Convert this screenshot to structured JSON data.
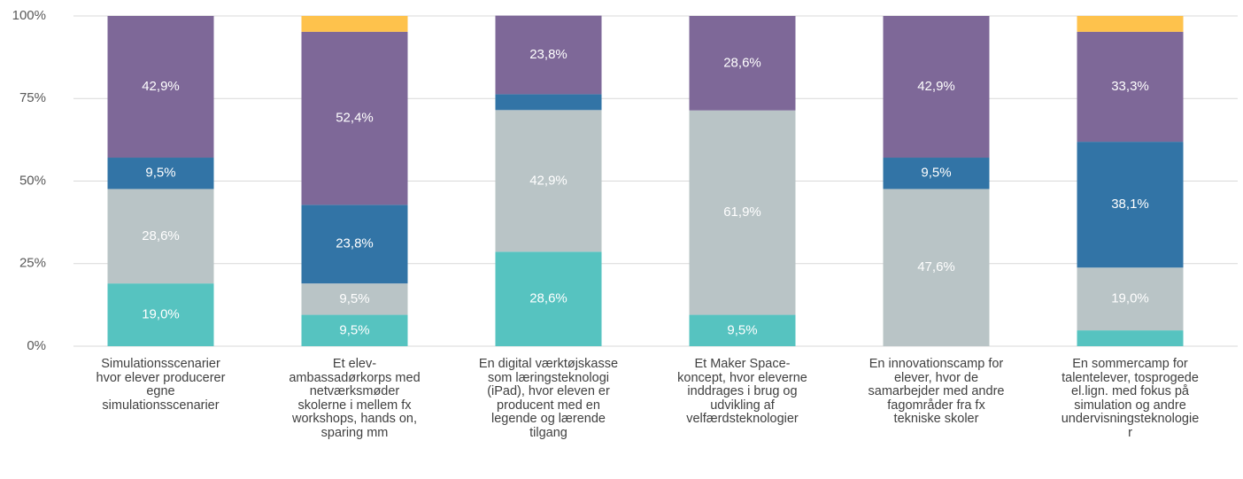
{
  "chart_data": {
    "type": "stacked_bar",
    "categories": [
      "Simulationsscenarier hvor elever producerer egne simulationsscenarier",
      "Et elev-ambassadørkorps med netværksmøder skolerne i mellem fx workshops, hands on, sparing mm",
      "En digital værktøjskasse som læringsteknologi (iPad), hvor eleven er producent med en legende og lærende tilgang",
      "Et Maker Space-koncept, hvor eleverne inddrages i brug og udvikling af velfærdsteknologier",
      "En innovationscamp for elever, hvor de samarbejder med andre fagområder fra fx tekniske skoler",
      "En sommercamp for talentelever, tosprogede el.lign. med fokus på simulation og andre undervisningsteknologier"
    ],
    "series": [
      {
        "color": "#56c3c0",
        "values": [
          19.0,
          9.5,
          28.6,
          9.5,
          0,
          4.8
        ],
        "value_labels": [
          "19,0%",
          "9,5%",
          "28,6%",
          "9,5%",
          null,
          null
        ]
      },
      {
        "color": "#b9c4c6",
        "values": [
          28.6,
          9.5,
          42.9,
          61.9,
          47.6,
          19.0
        ],
        "value_labels": [
          "28,6%",
          "9,5%",
          "42,9%",
          "61,9%",
          "47,6%",
          "19,0%"
        ]
      },
      {
        "color": "#3274a6",
        "values": [
          9.5,
          23.8,
          4.8,
          0,
          9.5,
          38.1
        ],
        "value_labels": [
          "9,5%",
          "23,8%",
          null,
          null,
          "9,5%",
          "38,1%"
        ]
      },
      {
        "color": "#7e6898",
        "values": [
          42.9,
          52.4,
          23.8,
          28.6,
          42.9,
          33.3
        ],
        "value_labels": [
          "42,9%",
          "52,4%",
          "23,8%",
          "28,6%",
          "42,9%",
          "33,3%"
        ]
      },
      {
        "color": "#fec24c",
        "values": [
          0,
          4.8,
          0,
          0,
          0,
          4.8
        ],
        "value_labels": [
          null,
          null,
          null,
          null,
          null,
          null
        ]
      }
    ],
    "ylim": [
      0,
      100
    ],
    "yticks": [
      {
        "value": 0,
        "label": "0%"
      },
      {
        "value": 25,
        "label": "25%"
      },
      {
        "value": 50,
        "label": "50%"
      },
      {
        "value": 75,
        "label": "75%"
      },
      {
        "value": 100,
        "label": "100%"
      }
    ],
    "grid": true
  }
}
